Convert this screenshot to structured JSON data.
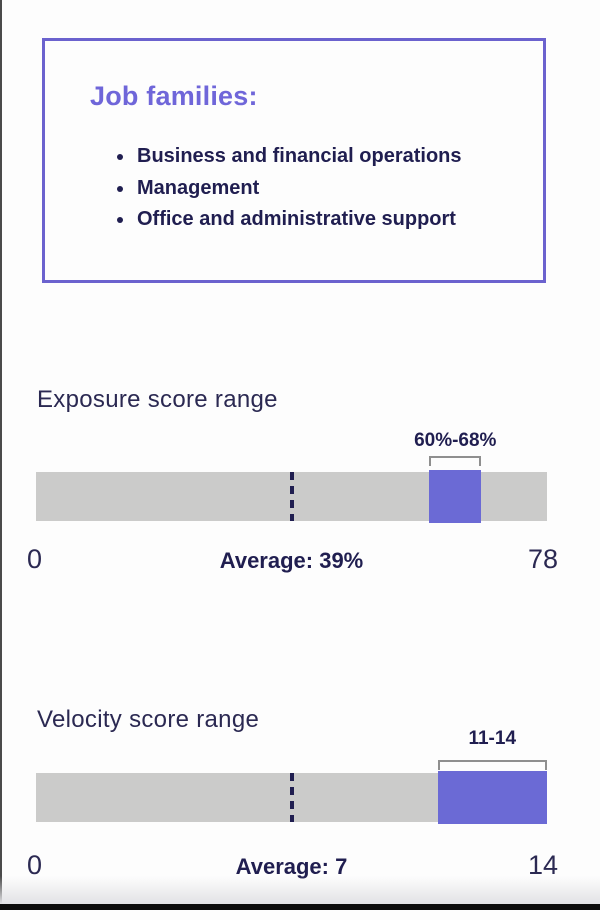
{
  "colors": {
    "accent_purple": "#6B6AD5",
    "heading_purple": "#6F66D9",
    "box_border": "#6B62CE",
    "navy": "#201E50",
    "title_navy": "#2B2952",
    "track_gray": "#CBCBCA",
    "bracket_gray": "#8F8F8F"
  },
  "job_families_box": {
    "heading": "Job families:",
    "items": [
      "Business and financial operations",
      "Management",
      "Office and administrative support"
    ]
  },
  "chart_data": [
    {
      "type": "bar",
      "subtype": "range-highlight-gauge",
      "title": "Exposure score range",
      "axis_min": 0,
      "axis_max": 78,
      "highlight_range": [
        60,
        68
      ],
      "highlight_label": "60%-68%",
      "average": 39,
      "average_label": "Average: 39%",
      "highlight_color": "#6B6AD5",
      "track_color": "#CBCBCA"
    },
    {
      "type": "bar",
      "subtype": "range-highlight-gauge",
      "title": "Velocity score range",
      "axis_min": 0,
      "axis_max": 14,
      "highlight_range": [
        11,
        14
      ],
      "highlight_label": "11-14",
      "average": 7,
      "average_label": "Average: 7",
      "highlight_color": "#6B6AD5",
      "track_color": "#CBCBCA"
    }
  ]
}
